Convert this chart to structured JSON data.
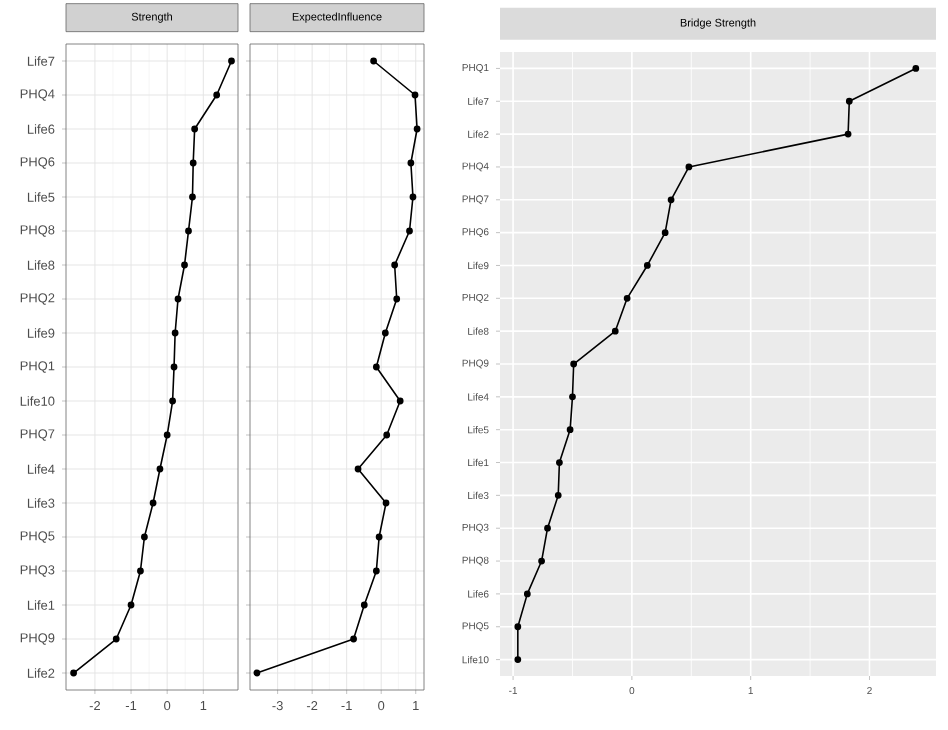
{
  "chart_data": [
    {
      "type": "line",
      "title": "Strength",
      "orientation": "horizontal",
      "marker": "circle",
      "grid": true,
      "color": "#000000",
      "categories": [
        "Life7",
        "PHQ4",
        "Life6",
        "PHQ6",
        "Life5",
        "PHQ8",
        "Life8",
        "PHQ2",
        "Life9",
        "PHQ1",
        "Life10",
        "PHQ7",
        "Life4",
        "Life3",
        "PHQ5",
        "PHQ3",
        "Life1",
        "PHQ9",
        "Life2"
      ],
      "values": [
        1.78,
        1.37,
        0.76,
        0.72,
        0.7,
        0.59,
        0.48,
        0.3,
        0.22,
        0.19,
        0.15,
        0.0,
        -0.2,
        -0.39,
        -0.63,
        -0.74,
        -1.0,
        -1.41,
        -2.59
      ],
      "xlim": [
        -2.8,
        1.96
      ],
      "xticks": [
        -2,
        -1,
        0,
        1
      ]
    },
    {
      "type": "line",
      "title": "ExpectedInfluence",
      "orientation": "horizontal",
      "marker": "circle",
      "grid": true,
      "color": "#000000",
      "categories": [
        null,
        null,
        null,
        null,
        null,
        null,
        null,
        null,
        null,
        null,
        null,
        null,
        null,
        null,
        null,
        null,
        null,
        null,
        null
      ],
      "values": [
        -0.22,
        0.98,
        1.04,
        0.86,
        0.92,
        0.82,
        0.39,
        0.45,
        0.12,
        -0.14,
        0.55,
        0.16,
        -0.67,
        0.14,
        -0.06,
        -0.14,
        -0.49,
        -0.8,
        -3.6
      ],
      "xlim": [
        -3.8,
        1.24
      ],
      "xticks": [
        -3,
        -2,
        -1,
        0,
        1
      ]
    },
    {
      "type": "line",
      "title": "Bridge Strength",
      "orientation": "horizontal",
      "marker": "circle",
      "grid": true,
      "color": "#000000",
      "categories": [
        "PHQ1",
        "Life7",
        "Life2",
        "PHQ4",
        "PHQ7",
        "PHQ6",
        "Life9",
        "PHQ2",
        "Life8",
        "PHQ9",
        "Life4",
        "Life5",
        "Life1",
        "Life3",
        "PHQ3",
        "PHQ8",
        "Life6",
        "PHQ5",
        "Life10"
      ],
      "values": [
        2.39,
        1.83,
        1.82,
        0.48,
        0.33,
        0.28,
        0.13,
        -0.04,
        -0.14,
        -0.49,
        -0.5,
        -0.52,
        -0.61,
        -0.62,
        -0.71,
        -0.76,
        -0.88,
        -0.96,
        -0.96
      ],
      "xlim": [
        -1.11,
        2.56
      ],
      "xticks": [
        -1,
        0,
        1,
        2
      ]
    }
  ]
}
